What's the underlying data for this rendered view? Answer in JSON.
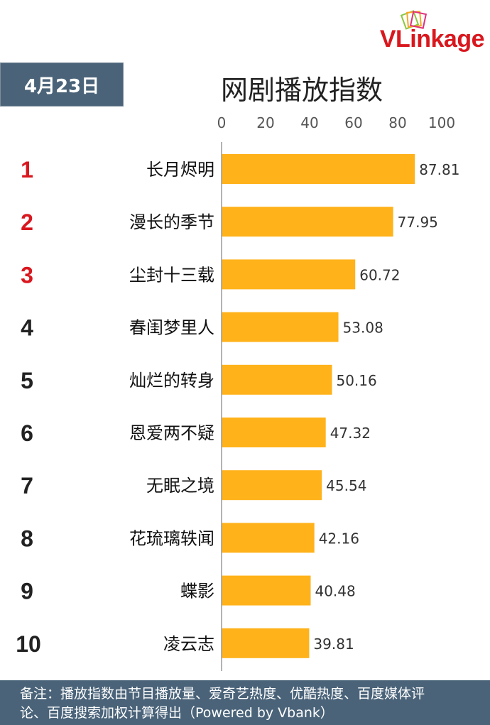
{
  "logo": {
    "text_v": "V",
    "text_rest": "Linkage"
  },
  "date": "4月23日",
  "title": "网剧播放指数",
  "footer": {
    "line1": "备注：播放指数由节目播放量、爱奇艺热度、优酷热度、百度媒体评",
    "line2": "论、百度搜索加权计算得出（Powered by Vbank）"
  },
  "colors": {
    "bar": "#ffb21a",
    "header_bg": "#4a6379",
    "rank_top": "#d9171e",
    "rank_other": "#222222",
    "brand": "#d9171e"
  },
  "chart_data": {
    "type": "bar",
    "orientation": "horizontal",
    "categories": [
      "长月烬明",
      "漫长的季节",
      "尘封十三载",
      "春闺梦里人",
      "灿烂的转身",
      "恩爱两不疑",
      "无眠之境",
      "花琉璃轶闻",
      "蝶影",
      "凌云志"
    ],
    "ranks": [
      "1",
      "2",
      "3",
      "4",
      "5",
      "6",
      "7",
      "8",
      "9",
      "10"
    ],
    "values": [
      87.81,
      77.95,
      60.72,
      53.08,
      50.16,
      47.32,
      45.54,
      42.16,
      40.48,
      39.81
    ],
    "value_labels": [
      "87.81",
      "77.95",
      "60.72",
      "53.08",
      "50.16",
      "47.32",
      "45.54",
      "42.16",
      "40.48",
      "39.81"
    ],
    "xlim": [
      0,
      100
    ],
    "ticks": [
      "0",
      "20",
      "40",
      "60",
      "80",
      "100"
    ],
    "tick_values": [
      0,
      20,
      40,
      60,
      80,
      100
    ],
    "axis_position": "top",
    "grid": false
  }
}
